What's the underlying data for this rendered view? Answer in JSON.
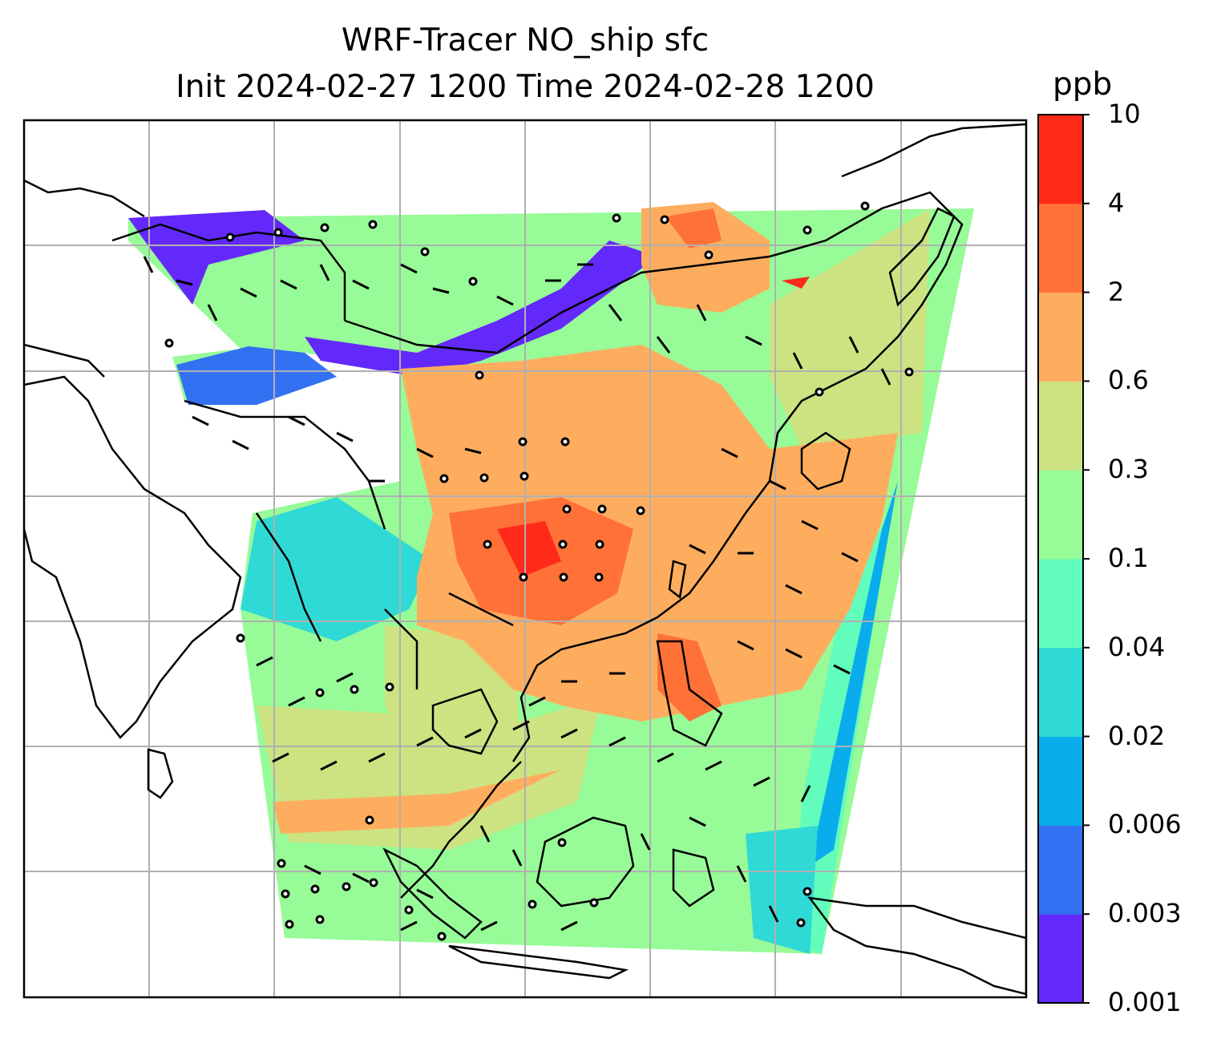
{
  "title_line1": "WRF-Tracer NO_ship sfc",
  "title_line2": "Init 2024-02-27 1200 Time 2024-02-28 1200",
  "colorbar": {
    "unit": "ppb",
    "levels": [
      "0.001",
      "0.003",
      "0.006",
      "0.02",
      "0.04",
      "0.1",
      "0.3",
      "0.6",
      "2",
      "4",
      "10"
    ],
    "colors": [
      "#6329fb",
      "#3371f3",
      "#0aadeb",
      "#2fd9d6",
      "#62fcbd",
      "#97fb97",
      "#cde381",
      "#fead5e",
      "#ff7136",
      "#ff2a1a"
    ]
  },
  "map": {
    "gridlines": true,
    "coastlines": true,
    "wind_barbs": true
  }
}
